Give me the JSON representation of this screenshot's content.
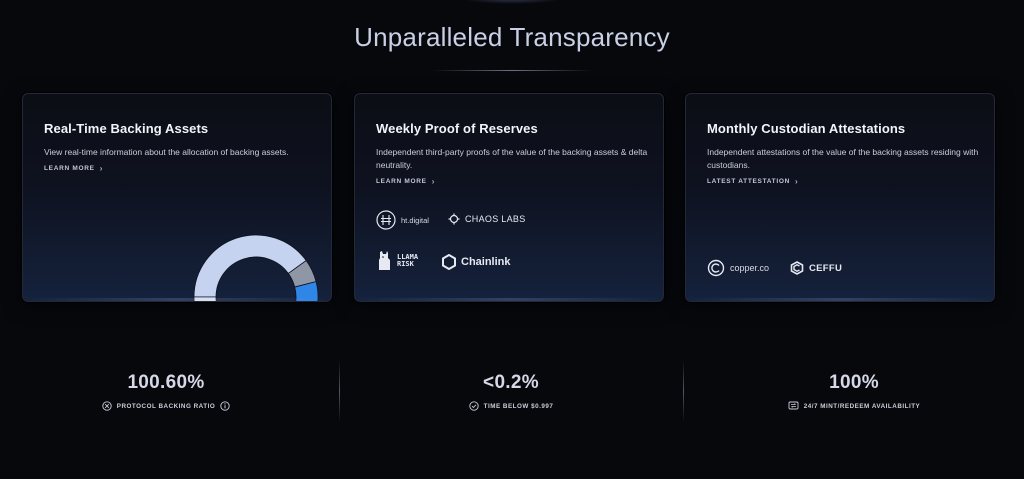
{
  "header": {
    "title": "Unparalleled Transparency"
  },
  "cards": [
    {
      "title": "Real-Time Backing Assets",
      "description": "View real-time information about the allocation of backing assets.",
      "link_label": "LEARN MORE"
    },
    {
      "title": "Weekly Proof of Reserves",
      "description": "Independent third-party proofs of the value of the backing assets & delta neutrality.",
      "link_label": "LEARN MORE",
      "logos": [
        {
          "name": "ht.digital",
          "icon": "ht-digital-logo"
        },
        {
          "name": "CHAOS LABS",
          "icon": "chaos-labs-logo"
        },
        {
          "name": "LLAMA RISK",
          "icon": "llama-risk-logo"
        },
        {
          "name": "Chainlink",
          "icon": "chainlink-logo"
        }
      ]
    },
    {
      "title": "Monthly Custodian Attestations",
      "description": "Independent attestations of the value of the backing assets residing with custodians.",
      "link_label": "LATEST ATTESTATION",
      "logos": [
        {
          "name": "copper.co",
          "icon": "copper-logo"
        },
        {
          "name": "CEFFU",
          "icon": "ceffu-logo"
        }
      ]
    }
  ],
  "backing_chart": {
    "segments": [
      {
        "share": 0.4,
        "color": "#c5d3f0"
      },
      {
        "share": 0.06,
        "color": "#8f96a6"
      },
      {
        "share": 0.09,
        "color": "#2f86e6"
      },
      {
        "share": 0.45,
        "color": "#eaf0fb"
      }
    ]
  },
  "stats": [
    {
      "value": "100.60%",
      "label": "PROTOCOL BACKING RATIO",
      "icon": "backing-ratio-icon"
    },
    {
      "value": "<0.2%",
      "label": "TIME BELOW $0.997",
      "icon": "check-circle-icon"
    },
    {
      "value": "100%",
      "label": "24/7 MINT/REDEEM AVAILABILITY",
      "icon": "exchange-icon"
    }
  ],
  "colors": {
    "background": "#07080c",
    "accent_blue": "#2f86e6"
  }
}
